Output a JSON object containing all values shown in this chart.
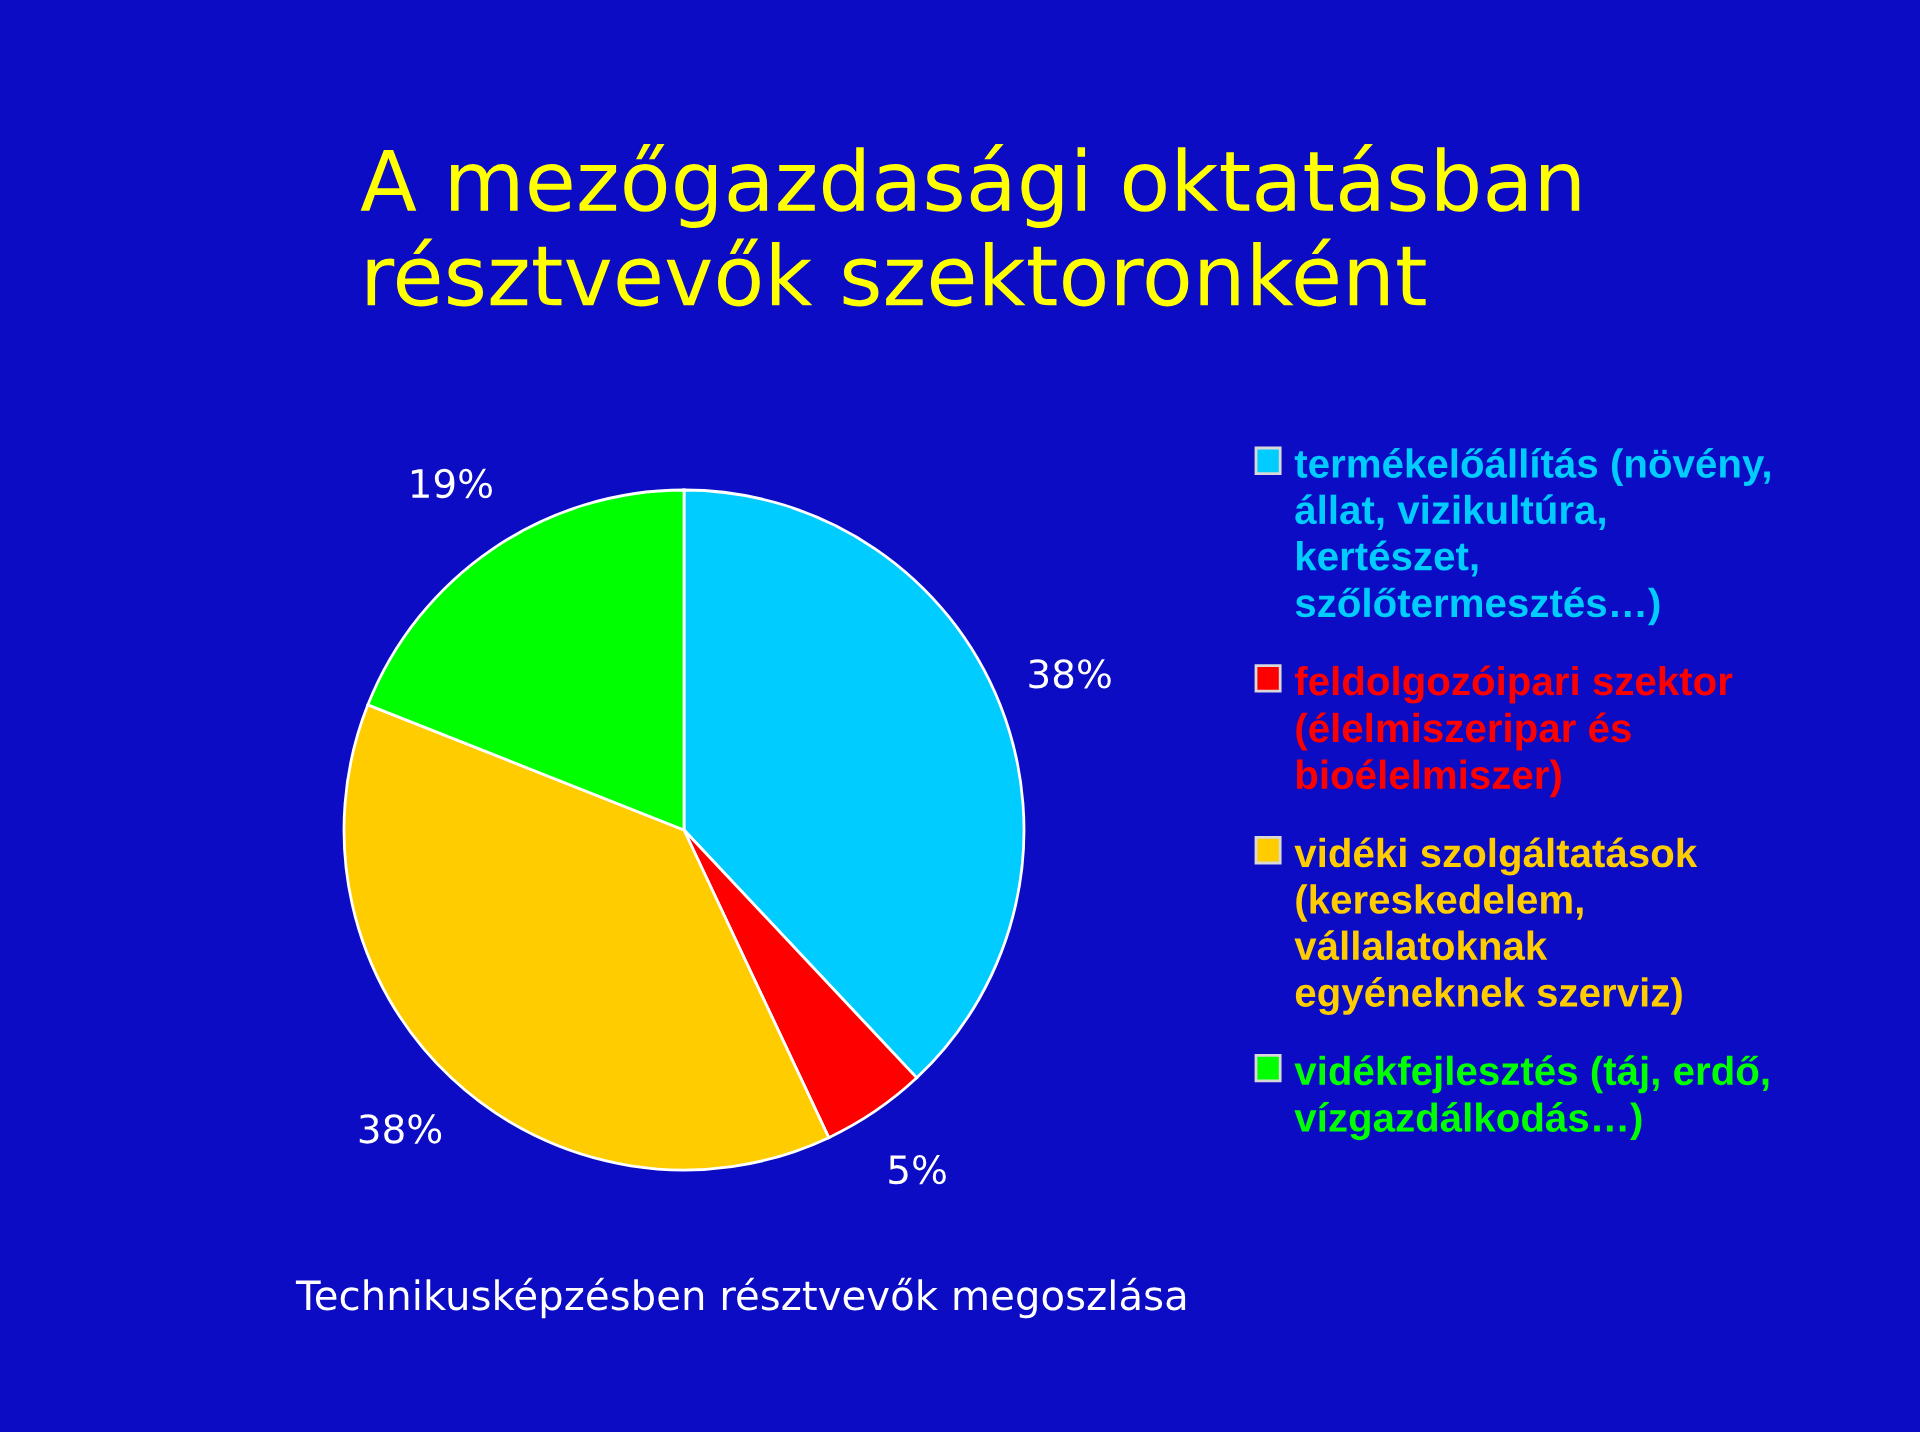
{
  "chart_data": {
    "type": "pie",
    "title": "A mezőgazdasági oktatásban\nrésztvevők szektoronként",
    "categories": [
      "termékelőállítás (növény,\nállat, vizikultúra,\nkertészet,\nszőlőtermesztés…)",
      "feldolgozóipari szektor\n(élelmiszeripar és\nbioélelmiszer)",
      "vidéki szolgáltatások\n(kereskedelem,\nvállalatoknak\negyéneknek szerviz)",
      "vidékfejlesztés (táj, erdő,\nvízgazdálkodás…)"
    ],
    "values": [
      38,
      5,
      38,
      19
    ],
    "value_labels": [
      "38%",
      "5%",
      "38%",
      "19%"
    ],
    "colors": [
      "#00ccff",
      "#ff0000",
      "#ffcc00",
      "#00ff00"
    ],
    "legend": "right",
    "annotations": [
      "Technikusképzésben résztvevők megoszlása"
    ]
  }
}
